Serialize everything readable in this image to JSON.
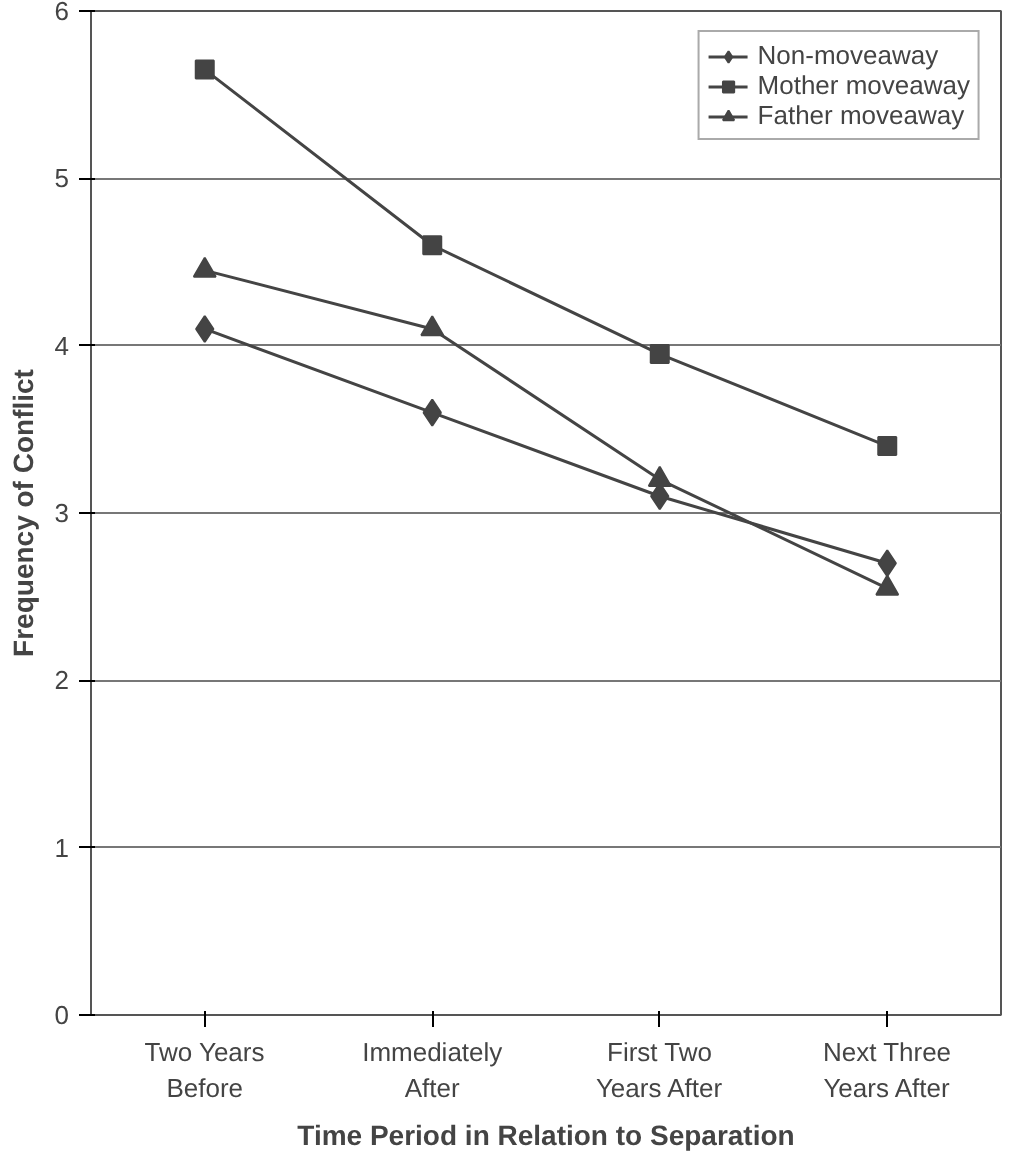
{
  "chart_data": {
    "type": "line",
    "xlabel": "Time Period in Relation to Separation",
    "ylabel": "Frequency of Conflict",
    "categories": [
      "Two Years\nBefore",
      "Immediately\nAfter",
      "First Two\nYears After",
      "Next Three\nYears After"
    ],
    "series": [
      {
        "name": "Non-moveaway",
        "color": "#444444",
        "marker": "diamond",
        "values": [
          4.1,
          3.6,
          3.1,
          2.7
        ]
      },
      {
        "name": "Mother moveaway",
        "color": "#444444",
        "marker": "square",
        "values": [
          5.65,
          4.6,
          3.95,
          3.4
        ]
      },
      {
        "name": "Father moveaway",
        "color": "#444444",
        "marker": "triangle",
        "values": [
          4.45,
          4.1,
          3.2,
          2.55
        ]
      }
    ],
    "ylim": [
      0,
      6
    ],
    "yticks": [
      0,
      1,
      2,
      3,
      4,
      5,
      6
    ],
    "grid": "y",
    "legend": "top right",
    "line_style": "solid"
  }
}
